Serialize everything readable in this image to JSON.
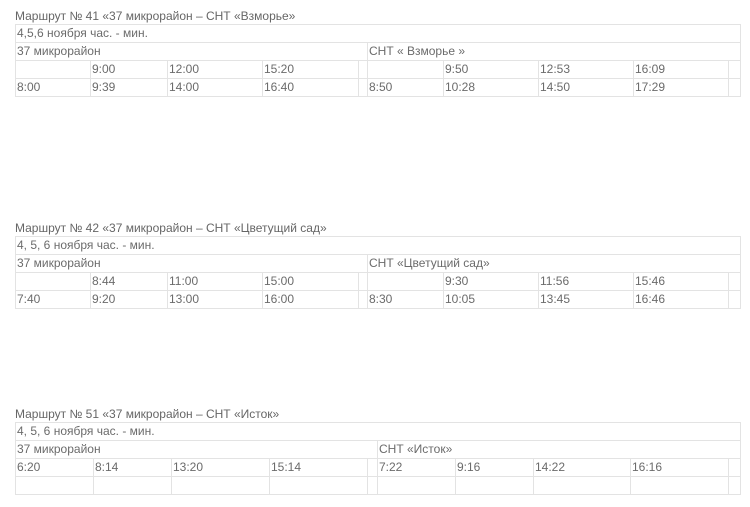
{
  "routes": [
    {
      "title": "Маршрут № 41 «37 микрорайон – СНТ «Взморье»",
      "dates": "4,5,6 ноября час. - мин.",
      "from_stop": "37 микрорайон",
      "to_stop": "СНТ « Взморье »",
      "rows": [
        {
          "from": [
            "",
            "9:00",
            "12:00",
            "15:20"
          ],
          "to": [
            "",
            "9:50",
            "12:53",
            "16:09"
          ]
        },
        {
          "from": [
            "8:00",
            "9:39",
            "14:00",
            "16:40"
          ],
          "to": [
            "8:50",
            "10:28",
            "14:50",
            "17:29"
          ]
        }
      ]
    },
    {
      "title": "Маршрут № 42 «37 микрорайон – СНТ «Цветущий сад»",
      "dates": "4, 5, 6 ноября час. - мин.",
      "from_stop": "37 микрорайон",
      "to_stop": "СНТ «Цветущий сад»",
      "rows": [
        {
          "from": [
            "",
            "8:44",
            "11:00",
            "15:00"
          ],
          "to": [
            "",
            "9:30",
            "11:56",
            "15:46"
          ]
        },
        {
          "from": [
            "7:40",
            "9:20",
            "13:00",
            "16:00"
          ],
          "to": [
            "8:30",
            "10:05",
            "13:45",
            "16:46"
          ]
        }
      ]
    },
    {
      "title": "Маршрут № 51 «37 микрорайон – СНТ «Исток»",
      "dates": "4, 5, 6 ноября час. - мин.",
      "from_stop": "37 микрорайон",
      "to_stop": "СНТ «Исток»",
      "rows": [
        {
          "from": [
            "6:20",
            "8:14",
            "13:20",
            "15:14"
          ],
          "to": [
            "7:22",
            "9:16",
            "14:22",
            "16:16"
          ]
        },
        {
          "from": [
            "",
            "",
            "",
            ""
          ],
          "to": [
            "",
            "",
            "",
            ""
          ]
        }
      ]
    }
  ]
}
